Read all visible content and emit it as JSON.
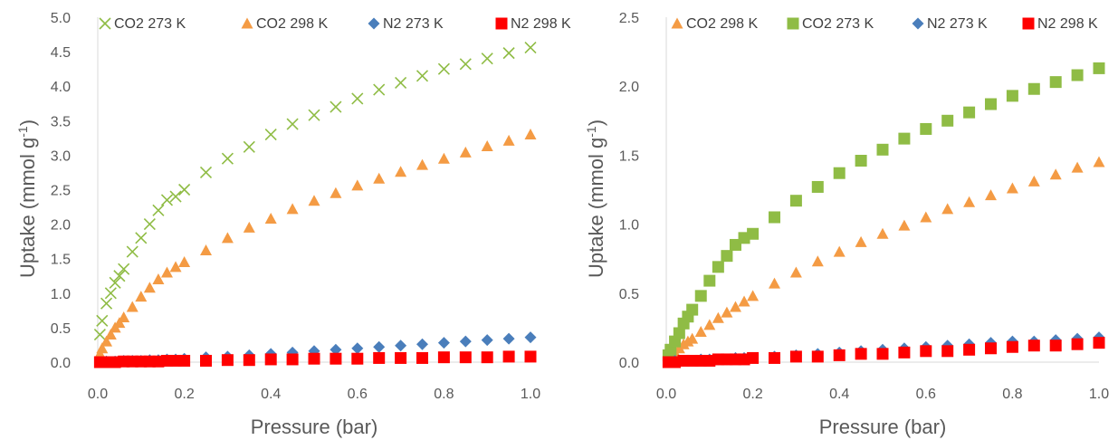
{
  "chart_data": [
    {
      "type": "scatter",
      "xlabel": "Pressure (bar)",
      "ylabel": "Uptake (mmol g",
      "ylabel_sup": "-1",
      "ylabel_close": ")",
      "xlim": [
        0,
        1
      ],
      "ylim": [
        0,
        5
      ],
      "xticks": [
        "0.0",
        "0.2",
        "0.4",
        "0.6",
        "0.8",
        "1.0"
      ],
      "yticks": [
        "0.0",
        "0.5",
        "1.0",
        "1.5",
        "2.0",
        "2.5",
        "3.0",
        "3.5",
        "4.0",
        "4.5",
        "5.0"
      ],
      "grid": false,
      "legend_position": "top",
      "series": [
        {
          "name": "CO2 273 K",
          "marker": "x",
          "color": "#8fbc45",
          "x": [
            0.005,
            0.01,
            0.02,
            0.03,
            0.04,
            0.05,
            0.06,
            0.08,
            0.1,
            0.12,
            0.14,
            0.16,
            0.18,
            0.2,
            0.25,
            0.3,
            0.35,
            0.4,
            0.45,
            0.5,
            0.55,
            0.6,
            0.65,
            0.7,
            0.75,
            0.8,
            0.85,
            0.9,
            0.95,
            1.0
          ],
          "y": [
            0.4,
            0.6,
            0.85,
            1.0,
            1.15,
            1.25,
            1.35,
            1.6,
            1.8,
            2.0,
            2.2,
            2.35,
            2.4,
            2.5,
            2.75,
            2.95,
            3.12,
            3.3,
            3.45,
            3.58,
            3.7,
            3.82,
            3.95,
            4.05,
            4.15,
            4.25,
            4.32,
            4.4,
            4.48,
            4.56
          ]
        },
        {
          "name": "CO2 298 K",
          "marker": "triangle",
          "color": "#f49b44",
          "x": [
            0.005,
            0.01,
            0.02,
            0.03,
            0.04,
            0.05,
            0.06,
            0.08,
            0.1,
            0.12,
            0.14,
            0.16,
            0.18,
            0.2,
            0.25,
            0.3,
            0.35,
            0.4,
            0.45,
            0.5,
            0.55,
            0.6,
            0.65,
            0.7,
            0.75,
            0.8,
            0.85,
            0.9,
            0.95,
            1.0
          ],
          "y": [
            0.12,
            0.2,
            0.3,
            0.4,
            0.5,
            0.57,
            0.65,
            0.8,
            0.95,
            1.08,
            1.2,
            1.3,
            1.38,
            1.45,
            1.62,
            1.8,
            1.95,
            2.08,
            2.22,
            2.34,
            2.45,
            2.56,
            2.66,
            2.76,
            2.86,
            2.95,
            3.04,
            3.13,
            3.21,
            3.3
          ]
        },
        {
          "name": "N2 273 K",
          "marker": "diamond",
          "color": "#4a7ebb",
          "x": [
            0.005,
            0.02,
            0.04,
            0.06,
            0.08,
            0.1,
            0.12,
            0.14,
            0.16,
            0.18,
            0.2,
            0.25,
            0.3,
            0.35,
            0.4,
            0.45,
            0.5,
            0.55,
            0.6,
            0.65,
            0.7,
            0.75,
            0.8,
            0.85,
            0.9,
            0.95,
            1.0
          ],
          "y": [
            0.0,
            0.01,
            0.01,
            0.02,
            0.02,
            0.02,
            0.03,
            0.03,
            0.04,
            0.04,
            0.05,
            0.07,
            0.08,
            0.1,
            0.12,
            0.14,
            0.16,
            0.18,
            0.2,
            0.22,
            0.24,
            0.26,
            0.28,
            0.3,
            0.32,
            0.34,
            0.36
          ]
        },
        {
          "name": "N2 298 K",
          "marker": "square",
          "color": "#ff0000",
          "x": [
            0.005,
            0.02,
            0.04,
            0.06,
            0.08,
            0.1,
            0.12,
            0.14,
            0.16,
            0.18,
            0.2,
            0.25,
            0.3,
            0.35,
            0.4,
            0.45,
            0.5,
            0.55,
            0.6,
            0.65,
            0.7,
            0.75,
            0.8,
            0.85,
            0.9,
            0.95,
            1.0
          ],
          "y": [
            0.0,
            0.0,
            0.0,
            0.01,
            0.01,
            0.01,
            0.01,
            0.01,
            0.02,
            0.02,
            0.02,
            0.02,
            0.03,
            0.03,
            0.04,
            0.04,
            0.05,
            0.05,
            0.05,
            0.06,
            0.06,
            0.06,
            0.07,
            0.07,
            0.07,
            0.08,
            0.08
          ]
        }
      ]
    },
    {
      "type": "scatter",
      "xlabel": "Pressure (bar)",
      "ylabel": "Uptake (mmol g",
      "ylabel_sup": "-1",
      "ylabel_close": ")",
      "xlim": [
        0,
        1
      ],
      "ylim": [
        0,
        2.5
      ],
      "xticks": [
        "0.0",
        "0.2",
        "0.4",
        "0.6",
        "0.8",
        "1.0"
      ],
      "yticks": [
        "0.0",
        "0.5",
        "1.0",
        "1.5",
        "2.0",
        "2.5"
      ],
      "grid": false,
      "legend_position": "top",
      "series": [
        {
          "name": "CO2 298 K",
          "marker": "triangle",
          "color": "#f49b44",
          "x": [
            0.005,
            0.01,
            0.02,
            0.03,
            0.04,
            0.05,
            0.06,
            0.08,
            0.1,
            0.12,
            0.14,
            0.16,
            0.18,
            0.2,
            0.25,
            0.3,
            0.35,
            0.4,
            0.45,
            0.5,
            0.55,
            0.6,
            0.65,
            0.7,
            0.75,
            0.8,
            0.85,
            0.9,
            0.95,
            1.0
          ],
          "y": [
            0.02,
            0.04,
            0.07,
            0.1,
            0.13,
            0.15,
            0.17,
            0.22,
            0.27,
            0.32,
            0.36,
            0.4,
            0.44,
            0.48,
            0.57,
            0.65,
            0.73,
            0.8,
            0.87,
            0.93,
            0.99,
            1.05,
            1.11,
            1.16,
            1.21,
            1.26,
            1.31,
            1.36,
            1.41,
            1.45
          ]
        },
        {
          "name": "CO2 273 K",
          "marker": "square",
          "color": "#8fbc45",
          "x": [
            0.005,
            0.01,
            0.02,
            0.03,
            0.04,
            0.05,
            0.06,
            0.08,
            0.1,
            0.12,
            0.14,
            0.16,
            0.18,
            0.2,
            0.25,
            0.3,
            0.35,
            0.4,
            0.45,
            0.5,
            0.55,
            0.6,
            0.65,
            0.7,
            0.75,
            0.8,
            0.85,
            0.9,
            0.95,
            1.0
          ],
          "y": [
            0.05,
            0.09,
            0.15,
            0.21,
            0.28,
            0.33,
            0.38,
            0.48,
            0.59,
            0.69,
            0.77,
            0.85,
            0.9,
            0.93,
            1.05,
            1.17,
            1.27,
            1.37,
            1.46,
            1.54,
            1.62,
            1.69,
            1.75,
            1.81,
            1.87,
            1.93,
            1.98,
            2.03,
            2.08,
            2.13
          ]
        },
        {
          "name": "N2 273 K",
          "marker": "diamond",
          "color": "#4a7ebb",
          "x": [
            0.005,
            0.02,
            0.04,
            0.06,
            0.08,
            0.1,
            0.12,
            0.14,
            0.16,
            0.18,
            0.2,
            0.25,
            0.3,
            0.35,
            0.4,
            0.45,
            0.5,
            0.55,
            0.6,
            0.65,
            0.7,
            0.75,
            0.8,
            0.85,
            0.9,
            0.95,
            1.0
          ],
          "y": [
            0.0,
            0.01,
            0.01,
            0.01,
            0.02,
            0.02,
            0.02,
            0.02,
            0.03,
            0.03,
            0.03,
            0.04,
            0.05,
            0.06,
            0.07,
            0.08,
            0.09,
            0.1,
            0.11,
            0.12,
            0.13,
            0.14,
            0.15,
            0.15,
            0.16,
            0.17,
            0.18
          ]
        },
        {
          "name": "N2 298 K",
          "marker": "square",
          "color": "#ff0000",
          "x": [
            0.005,
            0.02,
            0.04,
            0.06,
            0.08,
            0.1,
            0.12,
            0.14,
            0.16,
            0.18,
            0.2,
            0.25,
            0.3,
            0.35,
            0.4,
            0.45,
            0.5,
            0.55,
            0.6,
            0.65,
            0.7,
            0.75,
            0.8,
            0.85,
            0.9,
            0.95,
            1.0
          ],
          "y": [
            0.0,
            0.0,
            0.01,
            0.01,
            0.01,
            0.01,
            0.02,
            0.02,
            0.02,
            0.02,
            0.03,
            0.03,
            0.04,
            0.04,
            0.05,
            0.06,
            0.06,
            0.07,
            0.08,
            0.08,
            0.09,
            0.1,
            0.11,
            0.12,
            0.12,
            0.13,
            0.14
          ]
        }
      ]
    }
  ]
}
